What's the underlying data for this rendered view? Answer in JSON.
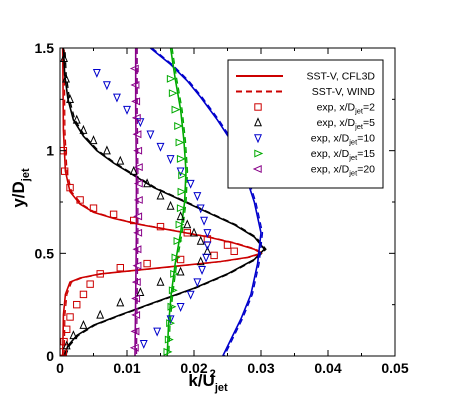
{
  "chart_data": {
    "type": "line",
    "xlabel": "k/U",
    "xlabel_sub": "jet",
    "xlabel_sup": "2",
    "ylabel": "y/D",
    "ylabel_sub": "jet",
    "xlim": [
      0,
      0.05
    ],
    "ylim": [
      0,
      1.5
    ],
    "x_ticks": [
      0,
      0.01,
      0.02,
      0.03,
      0.04,
      0.05
    ],
    "x_tick_labels": [
      "0",
      "0.01",
      "0.02",
      "0.03",
      "0.04",
      "0.05"
    ],
    "y_ticks": [
      0,
      0.5,
      1,
      1.5
    ],
    "y_tick_labels": [
      "0",
      "0.5",
      "1",
      "1.5"
    ],
    "grid": false,
    "legend_position": "top-right",
    "colors": {
      "x2": "#cc0000",
      "x5": "#000000",
      "x10": "#0000cc",
      "x15": "#00aa00",
      "x20": "#880088"
    },
    "legend": [
      {
        "label": "SST-V, CFL3D",
        "style": "solid-line",
        "color": "#cc0000"
      },
      {
        "label": "SST-V, WIND",
        "style": "dashed-line",
        "color": "#cc0000"
      },
      {
        "label": "exp, x/D",
        "sub": "jet",
        "suffix": "=2",
        "marker": "square",
        "color": "#cc0000"
      },
      {
        "label": "exp, x/D",
        "sub": "jet",
        "suffix": "=5",
        "marker": "triangle-up",
        "color": "#000000"
      },
      {
        "label": "exp, x/D",
        "sub": "jet",
        "suffix": "=10",
        "marker": "triangle-down",
        "color": "#0000cc"
      },
      {
        "label": "exp, x/D",
        "sub": "jet",
        "suffix": "=15",
        "marker": "triangle-right",
        "color": "#00aa00"
      },
      {
        "label": "exp, x/D",
        "sub": "jet",
        "suffix": "=20",
        "marker": "triangle-left",
        "color": "#880088"
      }
    ],
    "lines": [
      {
        "station": "x2",
        "color": "#cc0000",
        "points": [
          [
            0.0004,
            0.0
          ],
          [
            0.0005,
            0.2
          ],
          [
            0.0008,
            0.3
          ],
          [
            0.0015,
            0.36
          ],
          [
            0.003,
            0.38
          ],
          [
            0.006,
            0.4
          ],
          [
            0.012,
            0.42
          ],
          [
            0.018,
            0.44
          ],
          [
            0.024,
            0.46
          ],
          [
            0.028,
            0.48
          ],
          [
            0.03,
            0.5
          ],
          [
            0.029,
            0.52
          ],
          [
            0.026,
            0.55
          ],
          [
            0.022,
            0.58
          ],
          [
            0.017,
            0.61
          ],
          [
            0.012,
            0.64
          ],
          [
            0.008,
            0.67
          ],
          [
            0.005,
            0.7
          ],
          [
            0.003,
            0.74
          ],
          [
            0.0015,
            0.8
          ],
          [
            0.0008,
            0.9
          ],
          [
            0.0005,
            1.1
          ],
          [
            0.0004,
            1.5
          ]
        ]
      },
      {
        "station": "x5",
        "color": "#000000",
        "points": [
          [
            0.0006,
            0.0
          ],
          [
            0.0012,
            0.05
          ],
          [
            0.0025,
            0.1
          ],
          [
            0.005,
            0.15
          ],
          [
            0.009,
            0.2
          ],
          [
            0.014,
            0.26
          ],
          [
            0.02,
            0.33
          ],
          [
            0.025,
            0.4
          ],
          [
            0.029,
            0.47
          ],
          [
            0.0305,
            0.52
          ],
          [
            0.029,
            0.58
          ],
          [
            0.026,
            0.64
          ],
          [
            0.022,
            0.7
          ],
          [
            0.018,
            0.76
          ],
          [
            0.014,
            0.82
          ],
          [
            0.011,
            0.88
          ],
          [
            0.008,
            0.94
          ],
          [
            0.0055,
            1.0
          ],
          [
            0.0035,
            1.07
          ],
          [
            0.002,
            1.15
          ],
          [
            0.0012,
            1.25
          ],
          [
            0.0007,
            1.37
          ],
          [
            0.0005,
            1.5
          ]
        ]
      },
      {
        "station": "x10",
        "color": "#0000cc",
        "points": [
          [
            0.0135,
            1.5
          ],
          [
            0.0165,
            1.42
          ],
          [
            0.019,
            1.34
          ],
          [
            0.021,
            1.26
          ],
          [
            0.0235,
            1.15
          ],
          [
            0.0255,
            1.05
          ],
          [
            0.0275,
            0.9
          ],
          [
            0.029,
            0.75
          ],
          [
            0.03,
            0.6
          ],
          [
            0.0295,
            0.45
          ],
          [
            0.0285,
            0.3
          ],
          [
            0.027,
            0.18
          ],
          [
            0.0255,
            0.08
          ],
          [
            0.0243,
            0.0
          ]
        ]
      },
      {
        "station": "x15",
        "color": "#00aa00",
        "points": [
          [
            0.0165,
            1.5
          ],
          [
            0.0172,
            1.35
          ],
          [
            0.018,
            1.2
          ],
          [
            0.0185,
            1.05
          ],
          [
            0.0188,
            0.9
          ],
          [
            0.0186,
            0.75
          ],
          [
            0.018,
            0.6
          ],
          [
            0.0172,
            0.45
          ],
          [
            0.0166,
            0.3
          ],
          [
            0.0162,
            0.15
          ],
          [
            0.016,
            0.0
          ]
        ]
      },
      {
        "station": "x20",
        "color": "#880088",
        "points": [
          [
            0.0113,
            1.5
          ],
          [
            0.0113,
            1.2
          ],
          [
            0.0114,
            0.9
          ],
          [
            0.0114,
            0.6
          ],
          [
            0.0113,
            0.3
          ],
          [
            0.0112,
            0.0
          ]
        ]
      }
    ],
    "scatter": [
      {
        "station": "x2",
        "marker": "square",
        "color": "#cc0000",
        "points": [
          [
            0.0005,
            0.02
          ],
          [
            0.0006,
            0.07
          ],
          [
            0.001,
            0.13
          ],
          [
            0.0015,
            0.19
          ],
          [
            0.0025,
            0.25
          ],
          [
            0.0035,
            0.3
          ],
          [
            0.0045,
            0.35
          ],
          [
            0.006,
            0.4
          ],
          [
            0.009,
            0.43
          ],
          [
            0.013,
            0.45
          ],
          [
            0.018,
            0.47
          ],
          [
            0.023,
            0.49
          ],
          [
            0.026,
            0.51
          ],
          [
            0.025,
            0.54
          ],
          [
            0.022,
            0.57
          ],
          [
            0.019,
            0.6
          ],
          [
            0.015,
            0.63
          ],
          [
            0.011,
            0.66
          ],
          [
            0.008,
            0.69
          ],
          [
            0.005,
            0.72
          ],
          [
            0.003,
            0.76
          ],
          [
            0.0015,
            0.82
          ],
          [
            0.0007,
            0.9
          ],
          [
            0.0005,
            1.0
          ]
        ]
      },
      {
        "station": "x5",
        "marker": "triangle-up",
        "color": "#000000",
        "points": [
          [
            0.001,
            0.05
          ],
          [
            0.002,
            0.1
          ],
          [
            0.0035,
            0.15
          ],
          [
            0.006,
            0.2
          ],
          [
            0.009,
            0.26
          ],
          [
            0.012,
            0.31
          ],
          [
            0.015,
            0.36
          ],
          [
            0.018,
            0.41
          ],
          [
            0.021,
            0.46
          ],
          [
            0.022,
            0.51
          ],
          [
            0.021,
            0.56
          ],
          [
            0.02,
            0.6
          ],
          [
            0.019,
            0.64
          ],
          [
            0.018,
            0.68
          ],
          [
            0.0165,
            0.73
          ],
          [
            0.015,
            0.78
          ],
          [
            0.013,
            0.84
          ],
          [
            0.011,
            0.9
          ],
          [
            0.009,
            0.95
          ],
          [
            0.007,
            1.0
          ],
          [
            0.005,
            1.05
          ],
          [
            0.0035,
            1.1
          ],
          [
            0.0025,
            1.15
          ],
          [
            0.0015,
            1.25
          ],
          [
            0.0009,
            1.35
          ],
          [
            0.0006,
            1.45
          ]
        ]
      },
      {
        "station": "x10",
        "marker": "triangle-down",
        "color": "#0000cc",
        "points": [
          [
            0.0055,
            1.38
          ],
          [
            0.007,
            1.32
          ],
          [
            0.0085,
            1.26
          ],
          [
            0.01,
            1.2
          ],
          [
            0.012,
            1.14
          ],
          [
            0.0135,
            1.08
          ],
          [
            0.015,
            1.02
          ],
          [
            0.0165,
            0.96
          ],
          [
            0.018,
            0.9
          ],
          [
            0.0195,
            0.84
          ],
          [
            0.0205,
            0.78
          ],
          [
            0.021,
            0.72
          ],
          [
            0.0215,
            0.66
          ],
          [
            0.022,
            0.6
          ],
          [
            0.022,
            0.54
          ],
          [
            0.0218,
            0.48
          ],
          [
            0.0212,
            0.42
          ],
          [
            0.0205,
            0.36
          ],
          [
            0.0195,
            0.3
          ],
          [
            0.018,
            0.24
          ],
          [
            0.0165,
            0.18
          ],
          [
            0.0145,
            0.12
          ],
          [
            0.0125,
            0.06
          ]
        ]
      },
      {
        "station": "x15",
        "marker": "triangle-right",
        "color": "#00aa00",
        "points": [
          [
            0.0165,
            1.35
          ],
          [
            0.0168,
            1.28
          ],
          [
            0.0172,
            1.2
          ],
          [
            0.0176,
            1.12
          ],
          [
            0.0178,
            1.04
          ],
          [
            0.018,
            0.96
          ],
          [
            0.0182,
            0.88
          ],
          [
            0.0181,
            0.8
          ],
          [
            0.018,
            0.72
          ],
          [
            0.0178,
            0.64
          ],
          [
            0.0175,
            0.56
          ],
          [
            0.0172,
            0.48
          ],
          [
            0.017,
            0.4
          ],
          [
            0.0168,
            0.32
          ],
          [
            0.0166,
            0.24
          ],
          [
            0.0164,
            0.16
          ],
          [
            0.0162,
            0.08
          ],
          [
            0.016,
            0.02
          ]
        ]
      },
      {
        "station": "x20",
        "marker": "triangle-left",
        "color": "#880088",
        "points": [
          [
            0.0112,
            1.4
          ],
          [
            0.0113,
            1.32
          ],
          [
            0.0114,
            1.24
          ],
          [
            0.0115,
            1.16
          ],
          [
            0.0116,
            1.08
          ],
          [
            0.0117,
            1.0
          ],
          [
            0.0118,
            0.92
          ],
          [
            0.0118,
            0.84
          ],
          [
            0.0118,
            0.76
          ],
          [
            0.0117,
            0.68
          ],
          [
            0.0117,
            0.6
          ],
          [
            0.0116,
            0.52
          ],
          [
            0.0116,
            0.44
          ],
          [
            0.0115,
            0.36
          ],
          [
            0.0114,
            0.28
          ],
          [
            0.0114,
            0.2
          ],
          [
            0.0113,
            0.12
          ],
          [
            0.0112,
            0.04
          ]
        ]
      }
    ]
  }
}
